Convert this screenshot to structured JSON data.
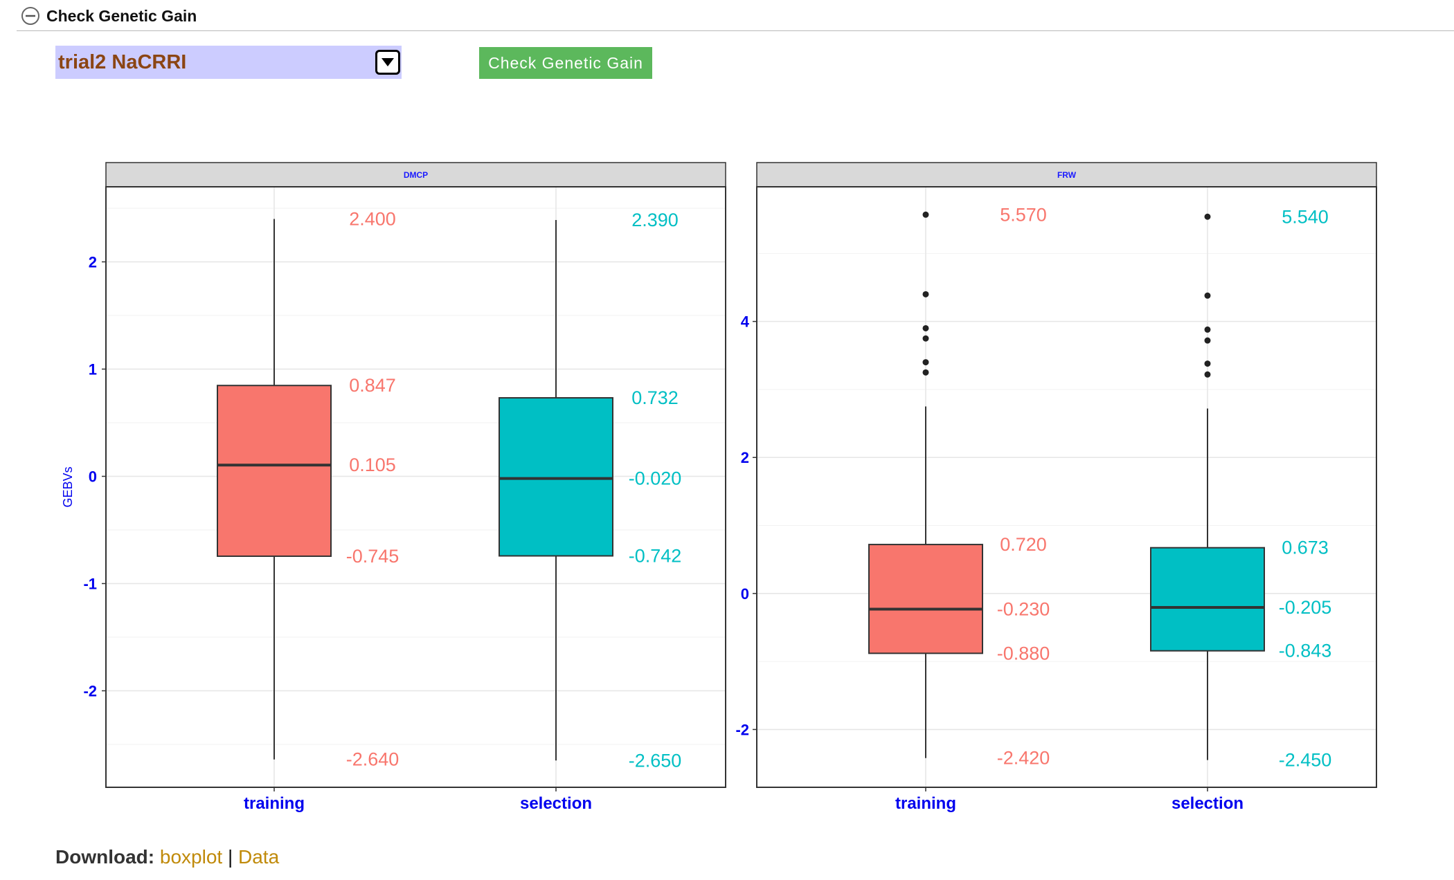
{
  "section": {
    "title": "Check Genetic Gain",
    "icon": "collapse-minus-icon"
  },
  "controls": {
    "trial_select_value": "trial2 NaCRRI",
    "check_button_label": "Check Genetic Gain",
    "select_bg_color": "#ccccff",
    "button_color": "#5cb85c"
  },
  "chart_data": [
    {
      "type": "boxplot",
      "facet": "DMCP",
      "ylabel": "GEBVs",
      "xlabel": "",
      "yticks": [
        -2,
        -1,
        0,
        1,
        2
      ],
      "ylim": [
        -2.9,
        2.7
      ],
      "grid": true,
      "categories": [
        "training",
        "selection"
      ],
      "series": [
        {
          "category": "training",
          "color": "#f8766d",
          "min": -2.64,
          "q1": -0.745,
          "median": 0.105,
          "q3": 0.847,
          "max": 2.4,
          "outliers": [],
          "labels": {
            "max": "2.400",
            "q3": "0.847",
            "median": "0.105",
            "q1": "-0.745",
            "min": "-2.640"
          }
        },
        {
          "category": "selection",
          "color": "#00bfc4",
          "min": -2.65,
          "q1": -0.742,
          "median": -0.02,
          "q3": 0.732,
          "max": 2.39,
          "outliers": [],
          "labels": {
            "max": "2.390",
            "q3": "0.732",
            "median": "-0.020",
            "q1": "-0.742",
            "min": "-2.650"
          }
        }
      ]
    },
    {
      "type": "boxplot",
      "facet": "FRW",
      "ylabel": "",
      "xlabel": "",
      "yticks": [
        -2,
        0,
        2,
        4
      ],
      "ylim": [
        -2.85,
        5.98
      ],
      "grid": true,
      "categories": [
        "training",
        "selection"
      ],
      "series": [
        {
          "category": "training",
          "color": "#f8766d",
          "min": -2.42,
          "q1": -0.88,
          "median": -0.23,
          "q3": 0.72,
          "max": 2.75,
          "outliers": [
            5.57,
            4.4,
            3.9,
            3.75,
            3.4,
            3.25
          ],
          "labels": {
            "max": "5.570",
            "q3": "0.720",
            "median": "-0.230",
            "q1": "-0.880",
            "min": "-2.420"
          }
        },
        {
          "category": "selection",
          "color": "#00bfc4",
          "min": -2.45,
          "q1": -0.843,
          "median": -0.205,
          "q3": 0.673,
          "max": 2.72,
          "outliers": [
            5.54,
            4.38,
            3.88,
            3.72,
            3.38,
            3.22
          ],
          "labels": {
            "max": "5.540",
            "q3": "0.673",
            "median": "-0.205",
            "q1": "-0.843",
            "min": "-2.450"
          }
        }
      ]
    }
  ],
  "download": {
    "label": "Download:",
    "boxplot_link": "boxplot",
    "separator": "|",
    "data_link": "Data"
  }
}
